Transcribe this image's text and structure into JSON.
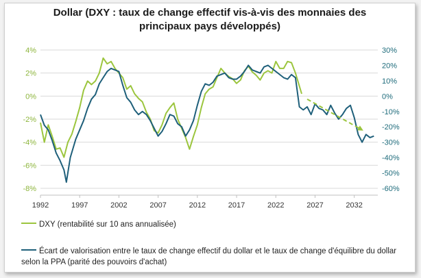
{
  "chart_data": {
    "type": "line",
    "title": "Dollar (DXY : taux de change effectif vis-à-vis des monnaies des principaux pays développés)",
    "title_lines": [
      "Dollar (DXY : taux de change effectif vis-à-vis des monnaies des",
      "principaux pays développés)"
    ],
    "xlim": [
      1992,
      2035
    ],
    "x_ticks": [
      "1992",
      "1997",
      "2002",
      "2007",
      "2012",
      "2017",
      "2022",
      "2027",
      "2032"
    ],
    "y_left": {
      "range": [
        -8,
        4
      ],
      "ticks": [
        "4%",
        "2%",
        "0%",
        "-2%",
        "-4%",
        "-6%",
        "-8%"
      ],
      "color": "#8db53c"
    },
    "y_right": {
      "range": [
        -60,
        30
      ],
      "ticks": [
        "30%",
        "20%",
        "10%",
        "0%",
        "-10%",
        "-20%",
        "-30%",
        "-40%",
        "-50%",
        "-60%"
      ],
      "color": "#1e6b7b"
    },
    "grid": "horizontal",
    "legend_position": "bottom",
    "series": [
      {
        "name": "DXY (rentabilité sur 10 ans annualisée)",
        "axis": "left",
        "color": "#9bc53d",
        "x": [
          1992,
          1992.5,
          1993,
          1993.5,
          1994,
          1994.5,
          1995,
          1995.5,
          1996,
          1996.5,
          1997,
          1997.5,
          1998,
          1998.5,
          1999,
          1999.5,
          2000,
          2000.5,
          2001,
          2001.5,
          2002,
          2002.5,
          2003,
          2003.5,
          2004,
          2004.5,
          2005,
          2005.5,
          2006,
          2006.5,
          2007,
          2007.5,
          2008,
          2008.5,
          2009,
          2009.5,
          2010,
          2010.5,
          2011,
          2011.5,
          2012,
          2012.5,
          2013,
          2013.5,
          2014,
          2014.5,
          2015,
          2015.5,
          2016,
          2016.5,
          2017,
          2017.5,
          2018,
          2018.5,
          2019,
          2019.5,
          2020,
          2020.5,
          2021,
          2021.5,
          2022,
          2022.5,
          2023,
          2023.5,
          2024,
          2024.5,
          2025.3
        ],
        "y": [
          -2.3,
          -4.0,
          -2.5,
          -3.5,
          -4.6,
          -4.5,
          -5.3,
          -4.0,
          -3.3,
          -2.2,
          -1.0,
          0.5,
          1.3,
          1.0,
          1.3,
          2.0,
          3.3,
          2.8,
          3.0,
          2.4,
          2.0,
          1.6,
          0.6,
          0.9,
          0.2,
          -0.2,
          -0.5,
          -1.4,
          -2.0,
          -3.0,
          -3.2,
          -2.5,
          -1.5,
          -1.0,
          -0.6,
          -2.0,
          -2.8,
          -3.6,
          -4.6,
          -3.5,
          -2.5,
          -1.0,
          0.2,
          0.6,
          0.8,
          1.6,
          2.4,
          2.0,
          1.7,
          1.5,
          1.1,
          1.4,
          2.2,
          2.6,
          2.1,
          1.8,
          1.4,
          2.0,
          2.2,
          2.0,
          3.0,
          2.4,
          2.4,
          3.0,
          2.9,
          2.0,
          0.2
        ]
      },
      {
        "name": "Écart de valorisation entre le taux de change effectif du dollar et le taux de change d'équilibre du dollar selon la PPA (parité des pouvoirs d'achat)",
        "axis": "right",
        "color": "#1e5f7a",
        "x": [
          1992,
          1992.5,
          1993,
          1993.5,
          1994,
          1994.5,
          1995,
          1995.3,
          1995.8,
          1996.5,
          1997,
          1997.5,
          1998,
          1998.5,
          1999,
          1999.5,
          2000,
          2000.5,
          2001,
          2001.5,
          2002,
          2002.5,
          2003,
          2003.5,
          2004,
          2004.5,
          2005,
          2005.5,
          2006,
          2006.5,
          2007,
          2007.5,
          2008,
          2008.5,
          2009,
          2009.5,
          2010,
          2010.5,
          2011,
          2011.5,
          2012,
          2012.5,
          2013,
          2013.5,
          2014,
          2014.5,
          2015,
          2015.5,
          2016,
          2016.5,
          2017,
          2017.5,
          2018,
          2018.5,
          2019,
          2019.5,
          2020,
          2020.5,
          2021,
          2021.5,
          2022,
          2022.5,
          2023,
          2023.5,
          2024,
          2024.5,
          2025,
          2025.5,
          2026,
          2026.5,
          2027,
          2027.5,
          2028,
          2028.5,
          2029,
          2029.5,
          2030,
          2030.5,
          2031,
          2031.5,
          2032,
          2032.5,
          2033,
          2033.5,
          2034,
          2034.5
        ],
        "y": [
          -12,
          -19,
          -22,
          -29,
          -37,
          -42,
          -48,
          -56,
          -40,
          -28,
          -22,
          -16,
          -8,
          -2,
          1,
          8,
          12,
          16,
          18,
          17,
          16,
          7,
          -1,
          -4,
          -9,
          -12,
          -10,
          -12,
          -16,
          -21,
          -26,
          -23,
          -18,
          -12,
          -13,
          -18,
          -20,
          -26,
          -22,
          -16,
          -6,
          3,
          8,
          7,
          9,
          13,
          14,
          15,
          12,
          11,
          11,
          13,
          16,
          20,
          17,
          16,
          15,
          19,
          20,
          18,
          16,
          14,
          12,
          11,
          14,
          12,
          -7,
          -9,
          -7,
          -12,
          -5,
          -8,
          -9,
          -12,
          -6,
          -11,
          -15,
          -12,
          -8,
          -6,
          -14,
          -25,
          -30,
          -25,
          -27,
          -26
        ]
      }
    ],
    "trend_arrow": {
      "color": "#9bc53d",
      "from": {
        "x": 2026.0,
        "y": -2.0
      },
      "to": {
        "x": 2033.0,
        "y": -22.0
      }
    }
  }
}
